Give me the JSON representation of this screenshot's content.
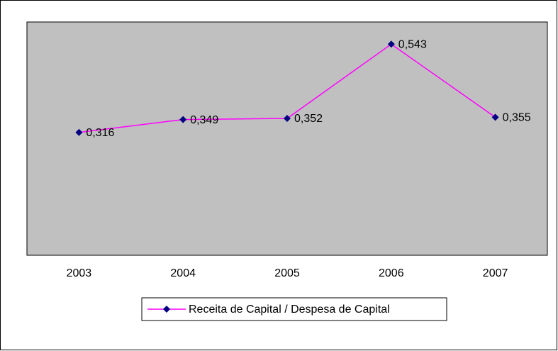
{
  "chart_data": {
    "type": "line",
    "categories": [
      "2003",
      "2004",
      "2005",
      "2006",
      "2007"
    ],
    "series": [
      {
        "name": "Receita de Capital / Despesa de Capital",
        "color": "#ff00ff",
        "marker_color": "#000080",
        "values": [
          0.316,
          0.349,
          0.352,
          0.543,
          0.355
        ],
        "value_labels": [
          "0,316",
          "0,349",
          "0,352",
          "0,543",
          "0,355"
        ]
      }
    ],
    "ylim": [
      0,
      0.6
    ],
    "plot_background": "#c0c0c0",
    "legend": "bottom"
  }
}
